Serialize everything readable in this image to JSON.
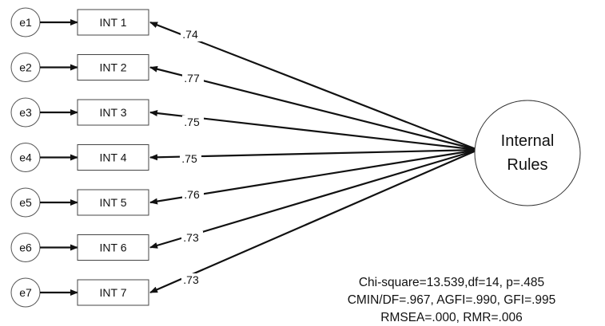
{
  "diagram": {
    "latent": {
      "lines": [
        "Internal",
        "Rules"
      ]
    },
    "indicators": [
      {
        "error": "e1",
        "label": "INT 1",
        "loading": ".74"
      },
      {
        "error": "e2",
        "label": "INT 2",
        "loading": ".77"
      },
      {
        "error": "e3",
        "label": "INT 3",
        "loading": ".75"
      },
      {
        "error": "e4",
        "label": "INT 4",
        "loading": ".75"
      },
      {
        "error": "e5",
        "label": "INT 5",
        "loading": ".76"
      },
      {
        "error": "e6",
        "label": "INT 6",
        "loading": ".73"
      },
      {
        "error": "e7",
        "label": "INT 7",
        "loading": ".73"
      }
    ],
    "fit_indices": [
      "Chi-square=13.539,df=14, p=.485",
      "CMIN/DF=.967, AGFI=.990, GFI=.995",
      "RMSEA=.000, RMR=.006"
    ]
  }
}
